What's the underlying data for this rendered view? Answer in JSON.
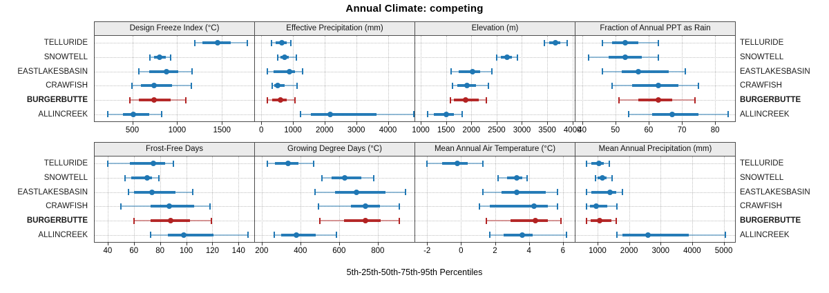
{
  "title": "Annual Climate: competing",
  "caption": "5th-25th-50th-75th-95th Percentiles",
  "colors": {
    "site_default": "#1f77b4",
    "site_highlight": "#b22222",
    "strip_bg": "#ebebeb",
    "panel_border": "#4d4d4d",
    "grid": "#bfbfbf"
  },
  "sites": [
    {
      "name": "TELLURIDE",
      "bold": false
    },
    {
      "name": "SNOWTELL",
      "bold": false
    },
    {
      "name": "EASTLAKESBASIN",
      "bold": false
    },
    {
      "name": "CRAWFISH",
      "bold": false
    },
    {
      "name": "BURGERBUTTE",
      "bold": true
    },
    {
      "name": "ALLINCREEK",
      "bold": false
    }
  ],
  "chart_data": {
    "type": "dot-whisker percentile trellis",
    "percentile_labels": [
      "5th",
      "25th",
      "50th",
      "75th",
      "95th"
    ],
    "legend_note": "BURGERBUTTE highlighted in red; other sites blue",
    "layout": {
      "rows": 2,
      "cols": 4,
      "grid": "dotted",
      "y_labels": "both sides"
    },
    "panels": [
      {
        "title": "Design Freeze Index (°C)",
        "band": 0,
        "col": 0,
        "ticks": [
          500,
          1000,
          1500
        ],
        "domain": [
          80,
          1860
        ],
        "series": [
          {
            "site": "TELLURIDE",
            "p": [
              1200,
              1280,
              1450,
              1600,
              1780
            ]
          },
          {
            "site": "SNOWTELL",
            "p": [
              700,
              745,
              805,
              875,
              930
            ]
          },
          {
            "site": "EASTLAKESBASIN",
            "p": [
              570,
              685,
              880,
              1015,
              1170
            ]
          },
          {
            "site": "CRAWFISH",
            "p": [
              495,
              595,
              745,
              940,
              1160
            ]
          },
          {
            "site": "BURGERBUTTE",
            "p": [
              470,
              570,
              745,
              930,
              1100
            ]
          },
          {
            "site": "ALLINCREEK",
            "p": [
              230,
              395,
              515,
              685,
              825
            ]
          }
        ]
      },
      {
        "title": "Effective Precipitation (mm)",
        "band": 0,
        "col": 1,
        "ticks": [
          0,
          1000,
          2000,
          3000,
          4000
        ],
        "domain": [
          -200,
          4840
        ],
        "series": [
          {
            "site": "TELLURIDE",
            "p": [
              325,
              460,
              660,
              800,
              940
            ]
          },
          {
            "site": "SNOWTELL",
            "p": [
              520,
              600,
              740,
              880,
              1100
            ]
          },
          {
            "site": "EASTLAKESBASIN",
            "p": [
              200,
              390,
              900,
              1070,
              1300
            ]
          },
          {
            "site": "CRAWFISH",
            "p": [
              350,
              420,
              520,
              730,
              1130
            ]
          },
          {
            "site": "BURGERBUTTE",
            "p": [
              200,
              350,
              600,
              800,
              1070
            ]
          },
          {
            "site": "ALLINCREEK",
            "p": [
              1230,
              1560,
              2170,
              3640,
              4820
            ]
          }
        ]
      },
      {
        "title": "Elevation (m)",
        "band": 0,
        "col": 2,
        "ticks": [
          1000,
          1500,
          2000,
          2500,
          3000,
          3500,
          4000
        ],
        "domain": [
          890,
          4045
        ],
        "series": [
          {
            "site": "TELLURIDE",
            "p": [
              3440,
              3540,
              3660,
              3760,
              3900
            ]
          },
          {
            "site": "SNOWTELL",
            "p": [
              2500,
              2590,
              2710,
              2800,
              2910
            ]
          },
          {
            "site": "EASTLAKESBASIN",
            "p": [
              1600,
              1750,
              2030,
              2180,
              2400
            ]
          },
          {
            "site": "CRAWFISH",
            "p": [
              1630,
              1720,
              1910,
              2090,
              2340
            ]
          },
          {
            "site": "BURGERBUTTE",
            "p": [
              1580,
              1650,
              1890,
              2150,
              2300
            ]
          },
          {
            "site": "ALLINCREEK",
            "p": [
              1130,
              1260,
              1510,
              1660,
              1820
            ]
          }
        ]
      },
      {
        "title": "Fraction of Annual PPT as Rain",
        "band": 0,
        "col": 3,
        "ticks": [
          40,
          50,
          60,
          70,
          80
        ],
        "domain": [
          38,
          86
        ],
        "series": [
          {
            "site": "TELLURIDE",
            "p": [
              46,
              49,
              53,
              57,
              63
            ]
          },
          {
            "site": "SNOWTELL",
            "p": [
              42,
              48,
              53,
              58,
              63
            ]
          },
          {
            "site": "EASTLAKESBASIN",
            "p": [
              46,
              52,
              57,
              66,
              71
            ]
          },
          {
            "site": "CRAWFISH",
            "p": [
              49,
              55,
              63,
              69,
              75
            ]
          },
          {
            "site": "BURGERBUTTE",
            "p": [
              51,
              57,
              63,
              67,
              74
            ]
          },
          {
            "site": "ALLINCREEK",
            "p": [
              54,
              61,
              67,
              75,
              84
            ]
          }
        ]
      },
      {
        "title": "Frost-Free Days",
        "band": 1,
        "col": 0,
        "ticks": [
          40,
          60,
          80,
          100,
          120,
          140
        ],
        "domain": [
          30,
          152
        ],
        "series": [
          {
            "site": "TELLURIDE",
            "p": [
              40,
              57,
              75,
              84,
              90
            ]
          },
          {
            "site": "SNOWTELL",
            "p": [
              53,
              58,
              70,
              74,
              79
            ]
          },
          {
            "site": "EASTLAKESBASIN",
            "p": [
              56,
              60,
              74,
              92,
              105
            ]
          },
          {
            "site": "CRAWFISH",
            "p": [
              50,
              73,
              87,
              106,
              118
            ]
          },
          {
            "site": "BURGERBUTTE",
            "p": [
              60,
              73,
              88,
              103,
              119
            ]
          },
          {
            "site": "ALLINCREEK",
            "p": [
              73,
              86,
              98,
              121,
              147
            ]
          }
        ]
      },
      {
        "title": "Growing Degree Days (°C)",
        "band": 1,
        "col": 1,
        "ticks": [
          200,
          400,
          600,
          800
        ],
        "domain": [
          165,
          990
        ],
        "series": [
          {
            "site": "TELLURIDE",
            "p": [
              230,
              270,
              335,
              390,
              470
            ]
          },
          {
            "site": "SNOWTELL",
            "p": [
              510,
              560,
              630,
              715,
              780
            ]
          },
          {
            "site": "EASTLAKESBASIN",
            "p": [
              475,
              580,
              690,
              840,
              945
            ]
          },
          {
            "site": "CRAWFISH",
            "p": [
              495,
              660,
              735,
              810,
              910
            ]
          },
          {
            "site": "BURGERBUTTE",
            "p": [
              500,
              625,
              735,
              815,
              910
            ]
          },
          {
            "site": "ALLINCREEK",
            "p": [
              265,
              300,
              380,
              480,
              585
            ]
          }
        ]
      },
      {
        "title": "Mean Annual Air Temperature (°C)",
        "band": 1,
        "col": 2,
        "ticks": [
          -2,
          0,
          2,
          4,
          6
        ],
        "domain": [
          -2.7,
          6.7
        ],
        "series": [
          {
            "site": "TELLURIDE",
            "p": [
              -2.0,
              -1.1,
              -0.2,
              0.4,
              1.3
            ]
          },
          {
            "site": "SNOWTELL",
            "p": [
              2.2,
              2.7,
              3.3,
              3.6,
              3.9
            ]
          },
          {
            "site": "EASTLAKESBASIN",
            "p": [
              1.3,
              2.4,
              3.3,
              5.0,
              5.7
            ]
          },
          {
            "site": "CRAWFISH",
            "p": [
              1.1,
              1.7,
              4.3,
              5.1,
              5.7
            ]
          },
          {
            "site": "BURGERBUTTE",
            "p": [
              1.5,
              2.9,
              4.4,
              5.1,
              5.9
            ]
          },
          {
            "site": "ALLINCREEK",
            "p": [
              1.7,
              2.5,
              3.6,
              4.2,
              6.2
            ]
          }
        ]
      },
      {
        "title": "Mean Annual Precipitation (mm)",
        "band": 1,
        "col": 3,
        "ticks": [
          1000,
          2000,
          3000,
          4000,
          5000
        ],
        "domain": [
          300,
          5360
        ],
        "series": [
          {
            "site": "TELLURIDE",
            "p": [
              650,
              800,
              1050,
              1200,
              1380
            ]
          },
          {
            "site": "SNOWTELL",
            "p": [
              930,
              1000,
              1160,
              1290,
              1470
            ]
          },
          {
            "site": "EASTLAKESBASIN",
            "p": [
              650,
              810,
              1400,
              1600,
              1780
            ]
          },
          {
            "site": "CRAWFISH",
            "p": [
              650,
              760,
              960,
              1300,
              1610
            ]
          },
          {
            "site": "BURGERBUTTE",
            "p": [
              650,
              780,
              1070,
              1430,
              1600
            ]
          },
          {
            "site": "ALLINCREEK",
            "p": [
              1610,
              1800,
              2600,
              3900,
              5050
            ]
          }
        ]
      }
    ]
  }
}
